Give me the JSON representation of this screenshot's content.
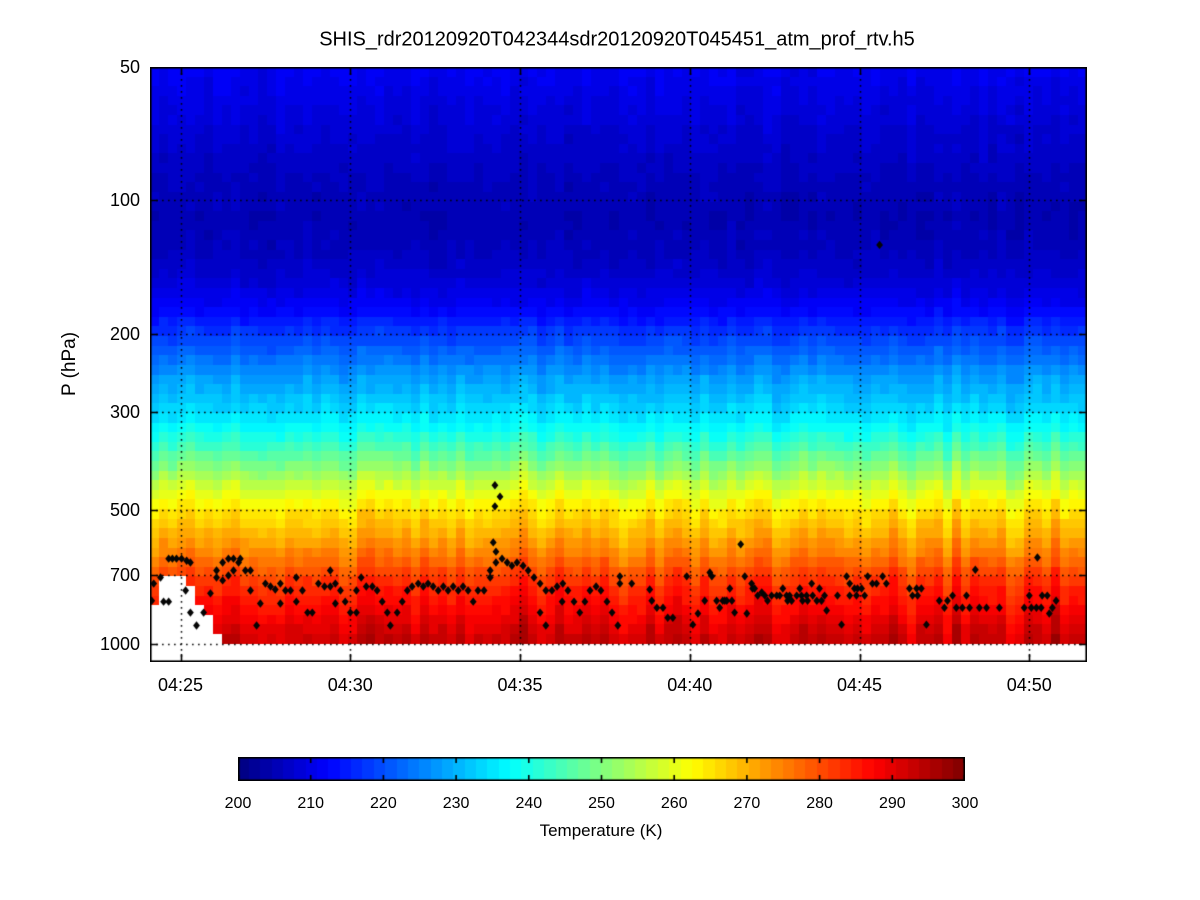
{
  "title": "SHIS_rdr20120920T042344sdr20120920T045451_atm_prof_rtv.h5",
  "chart_data": {
    "type": "heatmap",
    "title": "SHIS_rdr20120920T042344sdr20120920T045451_atm_prof_rtv.h5",
    "xlabel": "",
    "ylabel": "P (hPa)",
    "x_ticks": [
      {
        "label": "04:25",
        "minutes": 25
      },
      {
        "label": "04:30",
        "minutes": 30
      },
      {
        "label": "04:35",
        "minutes": 35
      },
      {
        "label": "04:40",
        "minutes": 40
      },
      {
        "label": "04:45",
        "minutes": 45
      },
      {
        "label": "04:50",
        "minutes": 50
      }
    ],
    "x_range_minutes": [
      24.1,
      51.7
    ],
    "y_ticks": [
      {
        "label": "50",
        "hPa": 50
      },
      {
        "label": "100",
        "hPa": 100
      },
      {
        "label": "200",
        "hPa": 200
      },
      {
        "label": "300",
        "hPa": 300
      },
      {
        "label": "500",
        "hPa": 500
      },
      {
        "label": "700",
        "hPa": 700
      },
      {
        "label": "1000",
        "hPa": 1000
      }
    ],
    "y_scale": "log",
    "y_axis_range_hPa": [
      50,
      1100
    ],
    "data_pressure_range_hPa": [
      50,
      1000
    ],
    "colormap": "jet",
    "clim_K": [
      200,
      300
    ],
    "colorbar": {
      "label": "Temperature (K)",
      "ticks": [
        200,
        210,
        220,
        230,
        240,
        250,
        260,
        270,
        280,
        290,
        300
      ]
    },
    "temperature_profile": {
      "pressure_hPa": [
        50,
        70,
        90,
        110,
        130,
        150,
        175,
        200,
        225,
        250,
        275,
        300,
        325,
        350,
        400,
        450,
        500,
        550,
        600,
        650,
        700,
        750,
        800,
        850,
        900,
        950,
        1000
      ],
      "temperature_K": [
        211,
        208,
        206,
        205,
        206,
        208,
        212,
        218,
        223,
        228,
        231,
        234,
        238,
        242,
        251,
        259,
        265,
        269,
        273,
        277,
        281,
        284,
        286,
        288,
        290,
        292,
        293
      ]
    },
    "surface_pressure_by_first_columns_hPa": [
      830,
      700,
      700,
      700,
      745,
      800,
      870,
      960
    ],
    "surface_pressure_default_hPa": 1000,
    "scatter_points_t_min_p_hPa": [
      [
        24.15,
        800
      ],
      [
        24.21,
        732
      ],
      [
        24.41,
        709
      ],
      [
        24.5,
        804
      ],
      [
        24.65,
        643
      ],
      [
        24.65,
        804
      ],
      [
        24.76,
        643
      ],
      [
        24.88,
        643
      ],
      [
        25.03,
        643
      ],
      [
        25.15,
        759
      ],
      [
        25.18,
        650
      ],
      [
        25.29,
        656
      ],
      [
        25.29,
        851
      ],
      [
        25.47,
        910
      ],
      [
        25.68,
        851
      ],
      [
        25.88,
        770
      ],
      [
        26.06,
        684
      ],
      [
        26.06,
        709
      ],
      [
        26.24,
        656
      ],
      [
        26.24,
        720
      ],
      [
        26.41,
        643
      ],
      [
        26.41,
        702
      ],
      [
        26.56,
        643
      ],
      [
        26.56,
        684
      ],
      [
        26.71,
        656
      ],
      [
        26.76,
        643
      ],
      [
        26.91,
        684
      ],
      [
        27.06,
        684
      ],
      [
        27.06,
        759
      ],
      [
        27.24,
        910
      ],
      [
        27.35,
        812
      ],
      [
        27.5,
        732
      ],
      [
        27.65,
        743
      ],
      [
        27.79,
        755
      ],
      [
        27.94,
        732
      ],
      [
        27.94,
        812
      ],
      [
        28.09,
        759
      ],
      [
        28.24,
        759
      ],
      [
        28.41,
        709
      ],
      [
        28.41,
        804
      ],
      [
        28.59,
        759
      ],
      [
        28.74,
        851
      ],
      [
        28.88,
        851
      ],
      [
        29.06,
        732
      ],
      [
        29.24,
        743
      ],
      [
        29.41,
        684
      ],
      [
        29.41,
        743
      ],
      [
        29.56,
        732
      ],
      [
        29.56,
        812
      ],
      [
        29.71,
        759
      ],
      [
        29.85,
        804
      ],
      [
        30.0,
        851
      ],
      [
        30.18,
        759
      ],
      [
        30.18,
        851
      ],
      [
        30.32,
        709
      ],
      [
        30.47,
        743
      ],
      [
        30.65,
        743
      ],
      [
        30.79,
        759
      ],
      [
        30.94,
        804
      ],
      [
        31.09,
        851
      ],
      [
        31.18,
        910
      ],
      [
        31.38,
        851
      ],
      [
        31.53,
        804
      ],
      [
        31.68,
        759
      ],
      [
        31.82,
        743
      ],
      [
        32.0,
        732
      ],
      [
        32.15,
        743
      ],
      [
        32.29,
        732
      ],
      [
        32.44,
        743
      ],
      [
        32.59,
        759
      ],
      [
        32.74,
        743
      ],
      [
        32.88,
        759
      ],
      [
        33.03,
        743
      ],
      [
        33.18,
        759
      ],
      [
        33.32,
        743
      ],
      [
        33.47,
        759
      ],
      [
        33.62,
        804
      ],
      [
        33.76,
        759
      ],
      [
        33.94,
        759
      ],
      [
        34.12,
        684
      ],
      [
        34.12,
        709
      ],
      [
        34.21,
        591
      ],
      [
        34.26,
        439
      ],
      [
        34.26,
        490
      ],
      [
        34.29,
        620
      ],
      [
        34.29,
        656
      ],
      [
        34.41,
        466
      ],
      [
        34.47,
        643
      ],
      [
        34.62,
        656
      ],
      [
        34.76,
        667
      ],
      [
        34.91,
        656
      ],
      [
        35.09,
        667
      ],
      [
        35.24,
        684
      ],
      [
        35.41,
        709
      ],
      [
        35.59,
        732
      ],
      [
        35.59,
        851
      ],
      [
        35.76,
        759
      ],
      [
        35.76,
        910
      ],
      [
        35.94,
        759
      ],
      [
        36.09,
        743
      ],
      [
        36.24,
        804
      ],
      [
        36.26,
        732
      ],
      [
        36.41,
        759
      ],
      [
        36.59,
        804
      ],
      [
        36.76,
        851
      ],
      [
        36.91,
        804
      ],
      [
        37.06,
        759
      ],
      [
        37.24,
        743
      ],
      [
        37.38,
        759
      ],
      [
        37.56,
        804
      ],
      [
        37.71,
        851
      ],
      [
        37.88,
        910
      ],
      [
        37.94,
        705
      ],
      [
        37.94,
        732
      ],
      [
        38.29,
        732
      ],
      [
        38.82,
        755
      ],
      [
        38.88,
        800
      ],
      [
        39.03,
        830
      ],
      [
        39.21,
        830
      ],
      [
        39.35,
        874
      ],
      [
        39.5,
        874
      ],
      [
        39.91,
        705
      ],
      [
        40.09,
        906
      ],
      [
        40.24,
        855
      ],
      [
        40.44,
        800
      ],
      [
        40.59,
        691
      ],
      [
        40.65,
        705
      ],
      [
        40.79,
        800
      ],
      [
        40.88,
        830
      ],
      [
        40.97,
        800
      ],
      [
        41.03,
        800
      ],
      [
        41.09,
        800
      ],
      [
        41.18,
        751
      ],
      [
        41.24,
        800
      ],
      [
        41.32,
        851
      ],
      [
        41.5,
        597
      ],
      [
        41.62,
        705
      ],
      [
        41.68,
        855
      ],
      [
        41.82,
        732
      ],
      [
        41.85,
        751
      ],
      [
        41.91,
        751
      ],
      [
        42.0,
        779
      ],
      [
        42.12,
        766
      ],
      [
        42.21,
        779
      ],
      [
        42.29,
        800
      ],
      [
        42.41,
        779
      ],
      [
        42.56,
        779
      ],
      [
        42.65,
        779
      ],
      [
        42.74,
        751
      ],
      [
        42.85,
        779
      ],
      [
        42.88,
        800
      ],
      [
        42.94,
        779
      ],
      [
        43.0,
        800
      ],
      [
        43.15,
        779
      ],
      [
        43.24,
        751
      ],
      [
        43.29,
        779
      ],
      [
        43.32,
        800
      ],
      [
        43.44,
        779
      ],
      [
        43.47,
        800
      ],
      [
        43.59,
        732
      ],
      [
        43.62,
        779
      ],
      [
        43.74,
        800
      ],
      [
        43.82,
        751
      ],
      [
        43.88,
        800
      ],
      [
        43.97,
        779
      ],
      [
        44.03,
        842
      ],
      [
        44.35,
        779
      ],
      [
        44.47,
        906
      ],
      [
        44.62,
        705
      ],
      [
        44.71,
        732
      ],
      [
        44.71,
        779
      ],
      [
        44.85,
        751
      ],
      [
        44.91,
        779
      ],
      [
        44.94,
        751
      ],
      [
        45.06,
        751
      ],
      [
        45.15,
        779
      ],
      [
        45.24,
        705
      ],
      [
        45.38,
        732
      ],
      [
        45.5,
        732
      ],
      [
        45.59,
        126
      ],
      [
        45.68,
        705
      ],
      [
        45.79,
        732
      ],
      [
        46.47,
        751
      ],
      [
        46.56,
        779
      ],
      [
        46.68,
        751
      ],
      [
        46.71,
        779
      ],
      [
        46.82,
        751
      ],
      [
        46.97,
        906
      ],
      [
        47.35,
        800
      ],
      [
        47.5,
        830
      ],
      [
        47.59,
        800
      ],
      [
        47.74,
        779
      ],
      [
        47.85,
        830
      ],
      [
        48.03,
        830
      ],
      [
        48.15,
        779
      ],
      [
        48.24,
        830
      ],
      [
        48.41,
        681
      ],
      [
        48.53,
        830
      ],
      [
        48.74,
        830
      ],
      [
        49.12,
        830
      ],
      [
        49.85,
        830
      ],
      [
        50.0,
        779
      ],
      [
        50.06,
        830
      ],
      [
        50.21,
        830
      ],
      [
        50.24,
        639
      ],
      [
        50.35,
        830
      ],
      [
        50.38,
        779
      ],
      [
        50.53,
        779
      ],
      [
        50.59,
        855
      ],
      [
        50.68,
        830
      ],
      [
        50.79,
        800
      ]
    ]
  },
  "render": {
    "seed": 20120920,
    "n_columns": 104,
    "n_levels": 60,
    "grid_color": "#000000",
    "marker_color": "#050505"
  }
}
